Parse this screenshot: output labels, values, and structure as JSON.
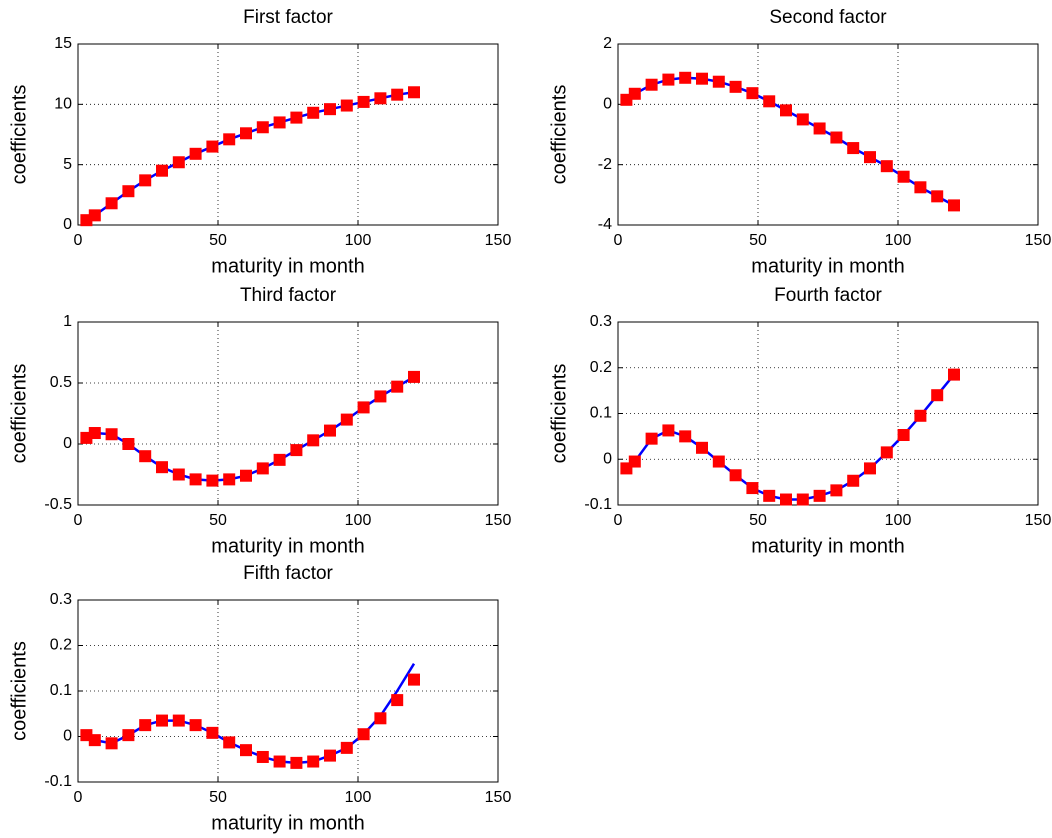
{
  "chart_data": [
    {
      "type": "line",
      "title": "First factor",
      "xlabel": "maturity in month",
      "ylabel": "coefficients",
      "x": [
        3,
        6,
        12,
        18,
        24,
        30,
        36,
        42,
        48,
        54,
        60,
        66,
        72,
        78,
        84,
        90,
        96,
        102,
        108,
        114,
        120
      ],
      "series": [
        {
          "color": "#0000ff",
          "style": "line",
          "values": [
            0.4,
            0.8,
            1.8,
            2.8,
            3.7,
            4.5,
            5.2,
            5.9,
            6.5,
            7.1,
            7.6,
            8.1,
            8.5,
            8.9,
            9.3,
            9.6,
            9.9,
            10.2,
            10.5,
            10.8,
            11.0
          ]
        },
        {
          "color": "#ff0000",
          "style": "markers",
          "values": [
            0.4,
            0.8,
            1.8,
            2.8,
            3.7,
            4.5,
            5.2,
            5.9,
            6.5,
            7.1,
            7.6,
            8.1,
            8.5,
            8.9,
            9.3,
            9.6,
            9.9,
            10.2,
            10.5,
            10.8,
            11.0
          ]
        }
      ],
      "xlim": [
        0,
        150
      ],
      "xticks": [
        0,
        50,
        100,
        150
      ],
      "ylim": [
        0,
        15
      ],
      "yticks": [
        0,
        5,
        10,
        15
      ],
      "grid": true
    },
    {
      "type": "line",
      "title": "Second factor",
      "xlabel": "maturity in month",
      "ylabel": "coefficients",
      "x": [
        3,
        6,
        12,
        18,
        24,
        30,
        36,
        42,
        48,
        54,
        60,
        66,
        72,
        78,
        84,
        90,
        96,
        102,
        108,
        114,
        120
      ],
      "series": [
        {
          "color": "#0000ff",
          "style": "line",
          "values": [
            0.15,
            0.35,
            0.65,
            0.82,
            0.88,
            0.85,
            0.75,
            0.58,
            0.37,
            0.1,
            -0.2,
            -0.5,
            -0.8,
            -1.1,
            -1.45,
            -1.75,
            -2.05,
            -2.4,
            -2.75,
            -3.05,
            -3.35
          ]
        },
        {
          "color": "#ff0000",
          "style": "markers",
          "values": [
            0.15,
            0.35,
            0.65,
            0.82,
            0.88,
            0.85,
            0.75,
            0.58,
            0.37,
            0.1,
            -0.2,
            -0.5,
            -0.8,
            -1.1,
            -1.45,
            -1.75,
            -2.05,
            -2.4,
            -2.75,
            -3.05,
            -3.35
          ]
        }
      ],
      "xlim": [
        0,
        150
      ],
      "xticks": [
        0,
        50,
        100,
        150
      ],
      "ylim": [
        -4,
        2
      ],
      "yticks": [
        -4,
        -2,
        0,
        2
      ],
      "grid": true
    },
    {
      "type": "line",
      "title": "Third factor",
      "xlabel": "maturity in month",
      "ylabel": "coefficients",
      "x": [
        3,
        6,
        12,
        18,
        24,
        30,
        36,
        42,
        48,
        54,
        60,
        66,
        72,
        78,
        84,
        90,
        96,
        102,
        108,
        114,
        120
      ],
      "series": [
        {
          "color": "#0000ff",
          "style": "line",
          "values": [
            0.05,
            0.09,
            0.08,
            0.0,
            -0.1,
            -0.19,
            -0.25,
            -0.29,
            -0.3,
            -0.29,
            -0.26,
            -0.2,
            -0.13,
            -0.05,
            0.03,
            0.11,
            0.2,
            0.3,
            0.39,
            0.47,
            0.55
          ]
        },
        {
          "color": "#ff0000",
          "style": "markers",
          "values": [
            0.05,
            0.09,
            0.08,
            0.0,
            -0.1,
            -0.19,
            -0.25,
            -0.29,
            -0.3,
            -0.29,
            -0.26,
            -0.2,
            -0.13,
            -0.05,
            0.03,
            0.11,
            0.2,
            0.3,
            0.39,
            0.47,
            0.55
          ]
        }
      ],
      "xlim": [
        0,
        150
      ],
      "xticks": [
        0,
        50,
        100,
        150
      ],
      "ylim": [
        -0.5,
        1
      ],
      "yticks": [
        -0.5,
        0,
        0.5,
        1
      ],
      "grid": true
    },
    {
      "type": "line",
      "title": "Fourth factor",
      "xlabel": "maturity in month",
      "ylabel": "coefficients",
      "x": [
        3,
        6,
        12,
        18,
        24,
        30,
        36,
        42,
        48,
        54,
        60,
        66,
        72,
        78,
        84,
        90,
        96,
        102,
        108,
        114,
        120
      ],
      "series": [
        {
          "color": "#0000ff",
          "style": "line",
          "values": [
            -0.02,
            -0.005,
            0.045,
            0.063,
            0.05,
            0.025,
            -0.005,
            -0.035,
            -0.063,
            -0.08,
            -0.088,
            -0.088,
            -0.08,
            -0.068,
            -0.047,
            -0.02,
            0.015,
            0.053,
            0.095,
            0.14,
            0.185
          ]
        },
        {
          "color": "#ff0000",
          "style": "markers",
          "values": [
            -0.02,
            -0.005,
            0.045,
            0.063,
            0.05,
            0.025,
            -0.005,
            -0.035,
            -0.063,
            -0.08,
            -0.088,
            -0.088,
            -0.08,
            -0.068,
            -0.047,
            -0.02,
            0.015,
            0.053,
            0.095,
            0.14,
            0.185
          ]
        }
      ],
      "xlim": [
        0,
        150
      ],
      "xticks": [
        0,
        50,
        100,
        150
      ],
      "ylim": [
        -0.1,
        0.3
      ],
      "yticks": [
        -0.1,
        0,
        0.1,
        0.2,
        0.3
      ],
      "grid": true
    },
    {
      "type": "line",
      "title": "Fifth factor",
      "xlabel": "maturity in month",
      "ylabel": "coefficients",
      "x": [
        3,
        6,
        12,
        18,
        24,
        30,
        36,
        42,
        48,
        54,
        60,
        66,
        72,
        78,
        84,
        90,
        96,
        102,
        108,
        114,
        120
      ],
      "series": [
        {
          "color": "#0000ff",
          "style": "line",
          "values": [
            0.003,
            -0.008,
            -0.015,
            0.003,
            0.025,
            0.035,
            0.035,
            0.025,
            0.008,
            -0.013,
            -0.03,
            -0.045,
            -0.055,
            -0.058,
            -0.055,
            -0.042,
            -0.025,
            0.005,
            0.045,
            0.1,
            0.16
          ]
        },
        {
          "color": "#ff0000",
          "style": "markers",
          "values": [
            0.003,
            -0.008,
            -0.015,
            0.003,
            0.025,
            0.035,
            0.035,
            0.025,
            0.008,
            -0.013,
            -0.03,
            -0.045,
            -0.055,
            -0.058,
            -0.055,
            -0.042,
            -0.025,
            0.005,
            0.04,
            0.08,
            0.125
          ]
        }
      ],
      "xlim": [
        0,
        150
      ],
      "xticks": [
        0,
        50,
        100,
        150
      ],
      "ylim": [
        -0.1,
        0.3
      ],
      "yticks": [
        -0.1,
        0,
        0.1,
        0.2,
        0.3
      ],
      "grid": true
    }
  ]
}
